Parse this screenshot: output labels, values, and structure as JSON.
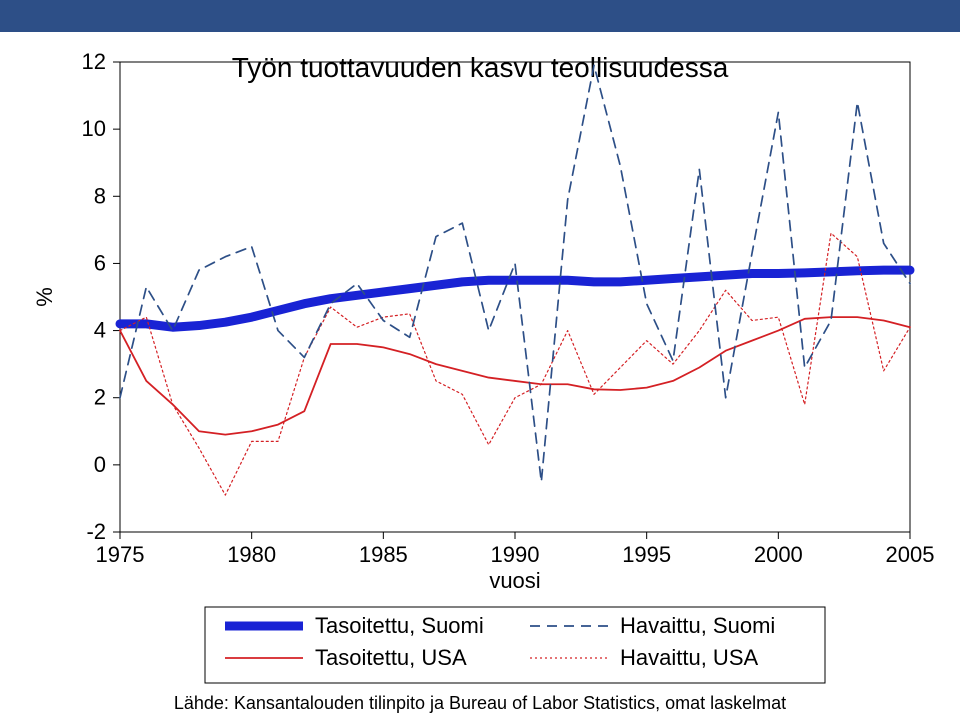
{
  "top_bar_color": "#2d4f87",
  "chart": {
    "type": "line",
    "title": "Työn tuottavuuden kasvu teollisuudessa",
    "title_fontsize": 28,
    "xlabel": "vuosi",
    "ylabel": "%",
    "label_fontsize": 22,
    "tick_fontsize": 22,
    "background_color": "#ffffff",
    "plot_border_color": "#000000",
    "xlim": [
      1975,
      2005
    ],
    "ylim": [
      -2,
      12
    ],
    "xticks": [
      1975,
      1980,
      1985,
      1990,
      1995,
      2000,
      2005
    ],
    "yticks": [
      -2,
      0,
      2,
      4,
      6,
      8,
      10,
      12
    ],
    "series": {
      "tasoitettu_suomi": {
        "label": "Tasoitettu, Suomi",
        "color": "#1923d4",
        "line_width": 9,
        "dash": "",
        "years": [
          1975,
          1976,
          1977,
          1978,
          1979,
          1980,
          1981,
          1982,
          1983,
          1984,
          1985,
          1986,
          1987,
          1988,
          1989,
          1990,
          1991,
          1992,
          1993,
          1994,
          1995,
          1996,
          1997,
          1998,
          1999,
          2000,
          2001,
          2002,
          2003,
          2004,
          2005
        ],
        "values": [
          4.2,
          4.2,
          4.1,
          4.15,
          4.25,
          4.4,
          4.6,
          4.8,
          4.95,
          5.05,
          5.15,
          5.25,
          5.35,
          5.45,
          5.5,
          5.5,
          5.5,
          5.5,
          5.45,
          5.45,
          5.5,
          5.55,
          5.6,
          5.65,
          5.7,
          5.7,
          5.72,
          5.75,
          5.78,
          5.8,
          5.8
        ]
      },
      "havaittu_suomi": {
        "label": "Havaittu, Suomi",
        "color": "#2d4f87",
        "line_width": 1.7,
        "dash": "10,7",
        "years": [
          1975,
          1976,
          1977,
          1978,
          1979,
          1980,
          1981,
          1982,
          1983,
          1984,
          1985,
          1986,
          1987,
          1988,
          1989,
          1990,
          1991,
          1992,
          1993,
          1994,
          1995,
          1996,
          1997,
          1998,
          1999,
          2000,
          2001,
          2002,
          2003,
          2004,
          2005
        ],
        "values": [
          2.0,
          5.3,
          4.0,
          5.8,
          6.2,
          6.5,
          4.0,
          3.2,
          4.8,
          5.4,
          4.3,
          3.8,
          6.8,
          7.2,
          4.0,
          6.0,
          -0.5,
          7.9,
          11.9,
          8.9,
          4.8,
          3.1,
          8.8,
          2.0,
          6.3,
          10.5,
          2.9,
          4.3,
          10.8,
          6.6,
          5.4
        ]
      },
      "tasoitettu_usa": {
        "label": "Tasoitettu, USA",
        "color": "#d42024",
        "line_width": 1.8,
        "dash": "",
        "years": [
          1975,
          1976,
          1977,
          1978,
          1979,
          1980,
          1981,
          1982,
          1983,
          1984,
          1985,
          1986,
          1987,
          1988,
          1989,
          1990,
          1991,
          1992,
          1993,
          1994,
          1995,
          1996,
          1997,
          1998,
          1999,
          2000,
          2001,
          2002,
          2003,
          2004,
          2005
        ],
        "values": [
          4.0,
          2.5,
          1.8,
          1.0,
          0.9,
          1.0,
          1.2,
          1.6,
          3.6,
          3.6,
          3.5,
          3.3,
          3.0,
          2.8,
          2.6,
          2.5,
          2.4,
          2.4,
          2.25,
          2.23,
          2.3,
          2.5,
          2.9,
          3.4,
          3.7,
          4.0,
          4.35,
          4.4,
          4.4,
          4.3,
          4.1
        ]
      },
      "havaittu_usa": {
        "label": "Havaittu, USA",
        "color": "#d42024",
        "line_width": 1.2,
        "dash": "2,3",
        "years": [
          1975,
          1976,
          1977,
          1978,
          1979,
          1980,
          1981,
          1982,
          1983,
          1984,
          1985,
          1986,
          1987,
          1988,
          1989,
          1990,
          1991,
          1992,
          1993,
          1994,
          1995,
          1996,
          1997,
          1998,
          1999,
          2000,
          2001,
          2002,
          2003,
          2004,
          2005
        ],
        "values": [
          4.0,
          4.4,
          1.8,
          0.5,
          -0.9,
          0.7,
          0.7,
          3.2,
          4.7,
          4.1,
          4.4,
          4.5,
          2.5,
          2.1,
          0.6,
          2.0,
          2.4,
          4.0,
          2.1,
          2.9,
          3.7,
          3.0,
          4.0,
          5.2,
          4.3,
          4.4,
          1.8,
          6.9,
          6.2,
          2.8,
          4.1
        ]
      }
    },
    "legend": {
      "items": [
        {
          "key": "tasoitettu_suomi",
          "col": 0,
          "row": 0
        },
        {
          "key": "havaittu_suomi",
          "col": 1,
          "row": 0
        },
        {
          "key": "tasoitettu_usa",
          "col": 0,
          "row": 1
        },
        {
          "key": "havaittu_usa",
          "col": 1,
          "row": 1
        }
      ],
      "fontsize": 22
    },
    "source_text": "Lähde: Kansantalouden tilinpito ja Bureau of Labor Statistics, omat laskelmat",
    "source_fontsize": 18
  }
}
